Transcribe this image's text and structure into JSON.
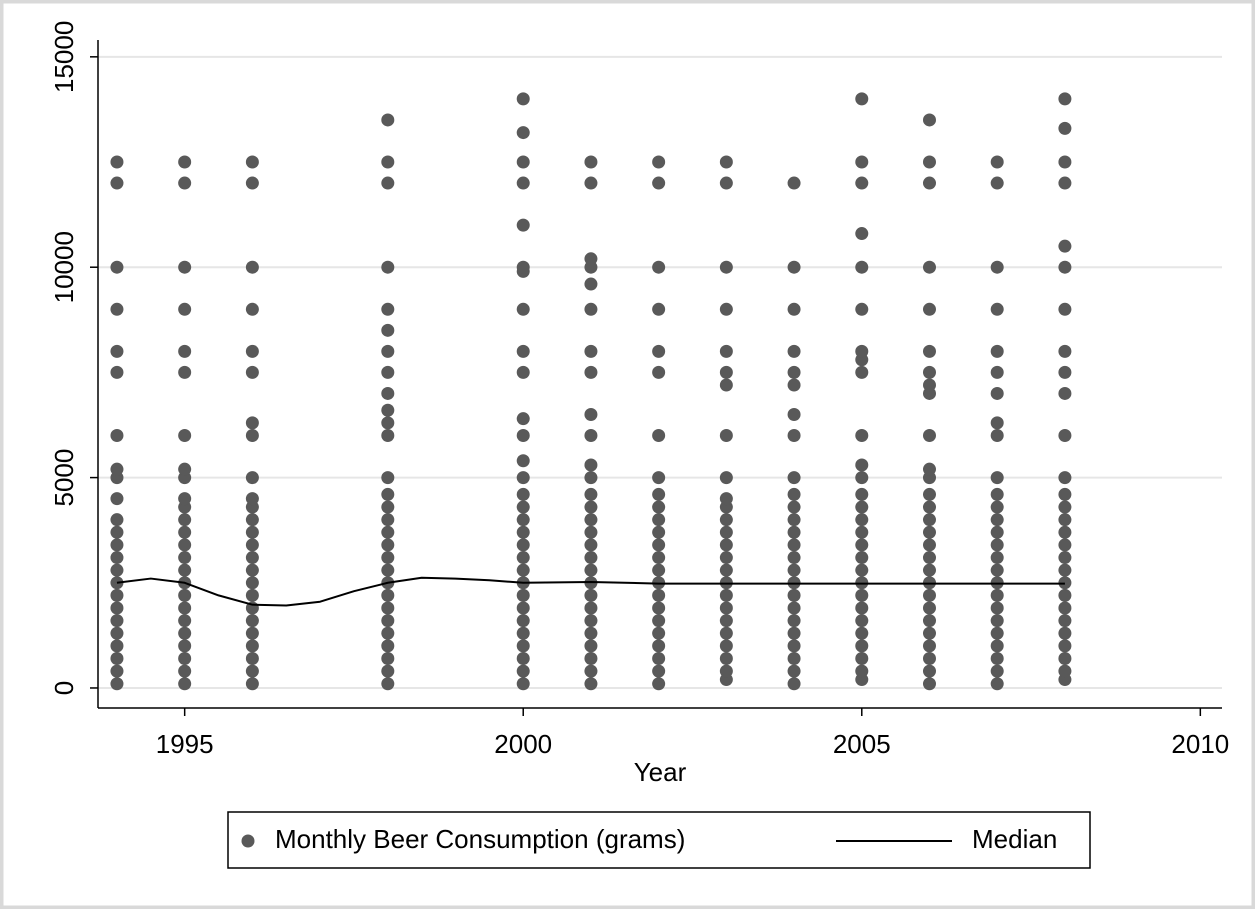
{
  "chart_data": {
    "type": "scatter",
    "xlabel": "Year",
    "xlim": [
      1993.72,
      2010.32
    ],
    "xticks": [
      1995,
      2000,
      2005,
      2010
    ],
    "ylim": [
      -476,
      15400
    ],
    "yticks": [
      0,
      5000,
      10000,
      15000
    ],
    "grid": true,
    "legend": "bottom",
    "series": [
      {
        "name": "Monthly Beer Consumption (grams)",
        "type": "scatter",
        "color": "#595959",
        "x": [
          1994,
          1994,
          1994,
          1994,
          1994,
          1994,
          1994,
          1994,
          1994,
          1994,
          1994,
          1994,
          1994,
          1994,
          1994,
          1994,
          1994,
          1994,
          1994,
          1994,
          1994,
          1994,
          1994,
          1994,
          1995,
          1995,
          1995,
          1995,
          1995,
          1995,
          1995,
          1995,
          1995,
          1995,
          1995,
          1995,
          1995,
          1995,
          1995,
          1995,
          1995,
          1995,
          1995,
          1995,
          1995,
          1995,
          1995,
          1995,
          1995,
          1996,
          1996,
          1996,
          1996,
          1996,
          1996,
          1996,
          1996,
          1996,
          1996,
          1996,
          1996,
          1996,
          1996,
          1996,
          1996,
          1996,
          1996,
          1996,
          1996,
          1996,
          1996,
          1996,
          1996,
          1996,
          1998,
          1998,
          1998,
          1998,
          1998,
          1998,
          1998,
          1998,
          1998,
          1998,
          1998,
          1998,
          1998,
          1998,
          1998,
          1998,
          1998,
          1998,
          1998,
          1998,
          1998,
          1998,
          1998,
          1998,
          1998,
          1998,
          1998,
          1998,
          1998,
          2000,
          2000,
          2000,
          2000,
          2000,
          2000,
          2000,
          2000,
          2000,
          2000,
          2000,
          2000,
          2000,
          2000,
          2000,
          2000,
          2000,
          2000,
          2000,
          2000,
          2000,
          2000,
          2000,
          2000,
          2000,
          2000,
          2000,
          2000,
          2000,
          2000,
          2001,
          2001,
          2001,
          2001,
          2001,
          2001,
          2001,
          2001,
          2001,
          2001,
          2001,
          2001,
          2001,
          2001,
          2001,
          2001,
          2001,
          2001,
          2001,
          2001,
          2001,
          2001,
          2001,
          2001,
          2001,
          2001,
          2001,
          2001,
          2002,
          2002,
          2002,
          2002,
          2002,
          2002,
          2002,
          2002,
          2002,
          2002,
          2002,
          2002,
          2002,
          2002,
          2002,
          2002,
          2002,
          2002,
          2002,
          2002,
          2002,
          2002,
          2002,
          2002,
          2003,
          2003,
          2003,
          2003,
          2003,
          2003,
          2003,
          2003,
          2003,
          2003,
          2003,
          2003,
          2003,
          2003,
          2003,
          2003,
          2003,
          2003,
          2003,
          2003,
          2003,
          2003,
          2003,
          2003,
          2003,
          2004,
          2004,
          2004,
          2004,
          2004,
          2004,
          2004,
          2004,
          2004,
          2004,
          2004,
          2004,
          2004,
          2004,
          2004,
          2004,
          2004,
          2004,
          2004,
          2004,
          2004,
          2004,
          2004,
          2004,
          2004,
          2005,
          2005,
          2005,
          2005,
          2005,
          2005,
          2005,
          2005,
          2005,
          2005,
          2005,
          2005,
          2005,
          2005,
          2005,
          2005,
          2005,
          2005,
          2005,
          2005,
          2005,
          2005,
          2005,
          2005,
          2005,
          2005,
          2005,
          2005,
          2006,
          2006,
          2006,
          2006,
          2006,
          2006,
          2006,
          2006,
          2006,
          2006,
          2006,
          2006,
          2006,
          2006,
          2006,
          2006,
          2006,
          2006,
          2006,
          2006,
          2006,
          2006,
          2006,
          2006,
          2006,
          2006,
          2006,
          2006,
          2007,
          2007,
          2007,
          2007,
          2007,
          2007,
          2007,
          2007,
          2007,
          2007,
          2007,
          2007,
          2007,
          2007,
          2007,
          2007,
          2007,
          2007,
          2007,
          2007,
          2007,
          2007,
          2007,
          2007,
          2007,
          2007,
          2008,
          2008,
          2008,
          2008,
          2008,
          2008,
          2008,
          2008,
          2008,
          2008,
          2008,
          2008,
          2008,
          2008,
          2008,
          2008,
          2008,
          2008,
          2008,
          2008,
          2008,
          2008,
          2008,
          2008,
          2008,
          2008,
          2008,
          2008
        ],
        "values": [
          100,
          400,
          700,
          1000,
          1300,
          1600,
          1900,
          2200,
          2500,
          2800,
          3100,
          3400,
          3700,
          4000,
          4500,
          5000,
          5200,
          6000,
          7500,
          8000,
          9000,
          10000,
          12000,
          12500,
          100,
          400,
          700,
          1000,
          1300,
          1600,
          1900,
          2200,
          2500,
          2800,
          3100,
          3400,
          3700,
          4000,
          4300,
          4500,
          5000,
          5200,
          6000,
          7500,
          8000,
          9000,
          10000,
          12000,
          12500,
          100,
          400,
          700,
          1000,
          1300,
          1600,
          1900,
          2200,
          2500,
          2800,
          3100,
          3400,
          3700,
          4000,
          4300,
          4500,
          5000,
          6000,
          6300,
          7500,
          8000,
          9000,
          10000,
          12000,
          12500,
          100,
          400,
          700,
          1000,
          1300,
          1600,
          1900,
          2200,
          2500,
          2800,
          3100,
          3400,
          3700,
          4000,
          4300,
          4600,
          5000,
          6000,
          6300,
          6600,
          7000,
          7500,
          8000,
          8500,
          9000,
          10000,
          12000,
          12500,
          13500,
          100,
          400,
          700,
          1000,
          1300,
          1600,
          1900,
          2200,
          2500,
          2800,
          3100,
          3400,
          3700,
          4000,
          4300,
          4600,
          5000,
          5400,
          6000,
          6400,
          7500,
          8000,
          9000,
          9900,
          10000,
          11000,
          12000,
          12500,
          13200,
          14000,
          100,
          400,
          700,
          1000,
          1300,
          1600,
          1900,
          2200,
          2500,
          2800,
          3100,
          3400,
          3700,
          4000,
          4300,
          4600,
          5000,
          5300,
          6000,
          6500,
          7500,
          8000,
          9000,
          9600,
          10000,
          10200,
          12000,
          12500,
          100,
          400,
          700,
          1000,
          1300,
          1600,
          1900,
          2200,
          2500,
          2800,
          3100,
          3400,
          3700,
          4000,
          4300,
          4600,
          5000,
          6000,
          7500,
          8000,
          9000,
          10000,
          12000,
          12500,
          200,
          400,
          700,
          1000,
          1300,
          1600,
          1900,
          2200,
          2500,
          2800,
          3100,
          3400,
          3700,
          4000,
          4300,
          4500,
          5000,
          6000,
          7200,
          7500,
          8000,
          9000,
          10000,
          12000,
          12500,
          100,
          400,
          700,
          1000,
          1300,
          1600,
          1900,
          2200,
          2500,
          2800,
          3100,
          3400,
          3700,
          4000,
          4300,
          4600,
          5000,
          6000,
          6500,
          7200,
          7500,
          8000,
          9000,
          10000,
          12000,
          200,
          400,
          700,
          1000,
          1300,
          1600,
          1900,
          2200,
          2500,
          2800,
          3100,
          3400,
          3700,
          4000,
          4300,
          4600,
          5000,
          5300,
          6000,
          7500,
          7800,
          8000,
          9000,
          10000,
          10800,
          12000,
          12500,
          14000,
          100,
          400,
          700,
          1000,
          1300,
          1600,
          1900,
          2200,
          2500,
          2800,
          3100,
          3400,
          3700,
          4000,
          4300,
          4600,
          5000,
          5200,
          6000,
          7000,
          7200,
          7500,
          8000,
          9000,
          10000,
          12000,
          12500,
          13500,
          100,
          400,
          700,
          1000,
          1300,
          1600,
          1900,
          2200,
          2500,
          2800,
          3100,
          3400,
          3700,
          4000,
          4300,
          4600,
          5000,
          6000,
          6300,
          7000,
          7500,
          8000,
          9000,
          10000,
          12000,
          12500,
          200,
          400,
          700,
          1000,
          1300,
          1600,
          1900,
          2200,
          2500,
          2800,
          3100,
          3400,
          3700,
          4000,
          4300,
          4600,
          5000,
          6000,
          7000,
          7500,
          8000,
          9000,
          10000,
          10500,
          12000,
          12500,
          13300,
          14000
        ]
      },
      {
        "name": "Median",
        "type": "line",
        "color": "#000000",
        "x": [
          1994,
          1994.5,
          1995,
          1995.5,
          1996,
          1996.5,
          1997,
          1997.5,
          1998,
          1998.5,
          1999,
          1999.5,
          2000,
          2001,
          2002,
          2003,
          2004,
          2005,
          2006,
          2007,
          2008
        ],
        "values": [
          2500,
          2600,
          2500,
          2200,
          1980,
          1960,
          2050,
          2300,
          2500,
          2620,
          2600,
          2560,
          2500,
          2520,
          2480,
          2480,
          2480,
          2480,
          2480,
          2480,
          2480
        ]
      }
    ]
  }
}
